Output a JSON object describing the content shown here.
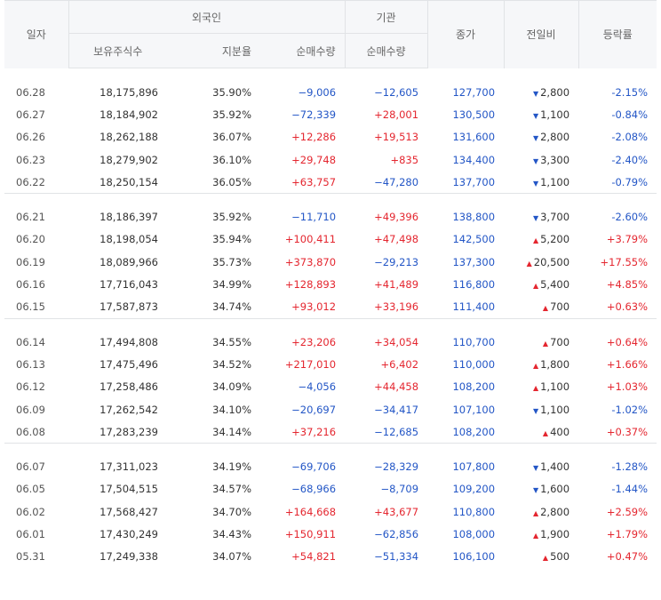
{
  "header": {
    "date": "일자",
    "foreign": "외국인",
    "institution": "기관",
    "holding": "보유주식수",
    "ratio": "지분율",
    "foreign_net": "순매수량",
    "inst_net": "순매수량",
    "close": "종가",
    "change": "전일비",
    "rate": "등락률"
  },
  "colors": {
    "down": "#2356c6",
    "up": "#e4262f"
  },
  "groups": [
    [
      {
        "date": "06.28",
        "holding": "18,175,896",
        "ratio": "35.90%",
        "fnet": "−9,006",
        "inet": "−12,605",
        "close": "127,700",
        "dir": "down",
        "change": "2,800",
        "rate": "-2.15%"
      },
      {
        "date": "06.27",
        "holding": "18,184,902",
        "ratio": "35.92%",
        "fnet": "−72,339",
        "inet": "+28,001",
        "close": "130,500",
        "dir": "down",
        "change": "1,100",
        "rate": "-0.84%"
      },
      {
        "date": "06.26",
        "holding": "18,262,188",
        "ratio": "36.07%",
        "fnet": "+12,286",
        "inet": "+19,513",
        "close": "131,600",
        "dir": "down",
        "change": "2,800",
        "rate": "-2.08%"
      },
      {
        "date": "06.23",
        "holding": "18,279,902",
        "ratio": "36.10%",
        "fnet": "+29,748",
        "inet": "+835",
        "close": "134,400",
        "dir": "down",
        "change": "3,300",
        "rate": "-2.40%"
      },
      {
        "date": "06.22",
        "holding": "18,250,154",
        "ratio": "36.05%",
        "fnet": "+63,757",
        "inet": "−47,280",
        "close": "137,700",
        "dir": "down",
        "change": "1,100",
        "rate": "-0.79%"
      }
    ],
    [
      {
        "date": "06.21",
        "holding": "18,186,397",
        "ratio": "35.92%",
        "fnet": "−11,710",
        "inet": "+49,396",
        "close": "138,800",
        "dir": "down",
        "change": "3,700",
        "rate": "-2.60%"
      },
      {
        "date": "06.20",
        "holding": "18,198,054",
        "ratio": "35.94%",
        "fnet": "+100,411",
        "inet": "+47,498",
        "close": "142,500",
        "dir": "up",
        "change": "5,200",
        "rate": "+3.79%"
      },
      {
        "date": "06.19",
        "holding": "18,089,966",
        "ratio": "35.73%",
        "fnet": "+373,870",
        "inet": "−29,213",
        "close": "137,300",
        "dir": "up",
        "change": "20,500",
        "rate": "+17.55%"
      },
      {
        "date": "06.16",
        "holding": "17,716,043",
        "ratio": "34.99%",
        "fnet": "+128,893",
        "inet": "+41,489",
        "close": "116,800",
        "dir": "up",
        "change": "5,400",
        "rate": "+4.85%"
      },
      {
        "date": "06.15",
        "holding": "17,587,873",
        "ratio": "34.74%",
        "fnet": "+93,012",
        "inet": "+33,196",
        "close": "111,400",
        "dir": "up",
        "change": "700",
        "rate": "+0.63%"
      }
    ],
    [
      {
        "date": "06.14",
        "holding": "17,494,808",
        "ratio": "34.55%",
        "fnet": "+23,206",
        "inet": "+34,054",
        "close": "110,700",
        "dir": "up",
        "change": "700",
        "rate": "+0.64%"
      },
      {
        "date": "06.13",
        "holding": "17,475,496",
        "ratio": "34.52%",
        "fnet": "+217,010",
        "inet": "+6,402",
        "close": "110,000",
        "dir": "up",
        "change": "1,800",
        "rate": "+1.66%"
      },
      {
        "date": "06.12",
        "holding": "17,258,486",
        "ratio": "34.09%",
        "fnet": "−4,056",
        "inet": "+44,458",
        "close": "108,200",
        "dir": "up",
        "change": "1,100",
        "rate": "+1.03%"
      },
      {
        "date": "06.09",
        "holding": "17,262,542",
        "ratio": "34.10%",
        "fnet": "−20,697",
        "inet": "−34,417",
        "close": "107,100",
        "dir": "down",
        "change": "1,100",
        "rate": "-1.02%"
      },
      {
        "date": "06.08",
        "holding": "17,283,239",
        "ratio": "34.14%",
        "fnet": "+37,216",
        "inet": "−12,685",
        "close": "108,200",
        "dir": "up",
        "change": "400",
        "rate": "+0.37%"
      }
    ],
    [
      {
        "date": "06.07",
        "holding": "17,311,023",
        "ratio": "34.19%",
        "fnet": "−69,706",
        "inet": "−28,329",
        "close": "107,800",
        "dir": "down",
        "change": "1,400",
        "rate": "-1.28%"
      },
      {
        "date": "06.05",
        "holding": "17,504,515",
        "ratio": "34.57%",
        "fnet": "−68,966",
        "inet": "−8,709",
        "close": "109,200",
        "dir": "down",
        "change": "1,600",
        "rate": "-1.44%"
      },
      {
        "date": "06.02",
        "holding": "17,568,427",
        "ratio": "34.70%",
        "fnet": "+164,668",
        "inet": "+43,677",
        "close": "110,800",
        "dir": "up",
        "change": "2,800",
        "rate": "+2.59%"
      },
      {
        "date": "06.01",
        "holding": "17,430,249",
        "ratio": "34.43%",
        "fnet": "+150,911",
        "inet": "−62,856",
        "close": "108,000",
        "dir": "up",
        "change": "1,900",
        "rate": "+1.79%"
      },
      {
        "date": "05.31",
        "holding": "17,249,338",
        "ratio": "34.07%",
        "fnet": "+54,821",
        "inet": "−51,334",
        "close": "106,100",
        "dir": "up",
        "change": "500",
        "rate": "+0.47%"
      }
    ]
  ]
}
